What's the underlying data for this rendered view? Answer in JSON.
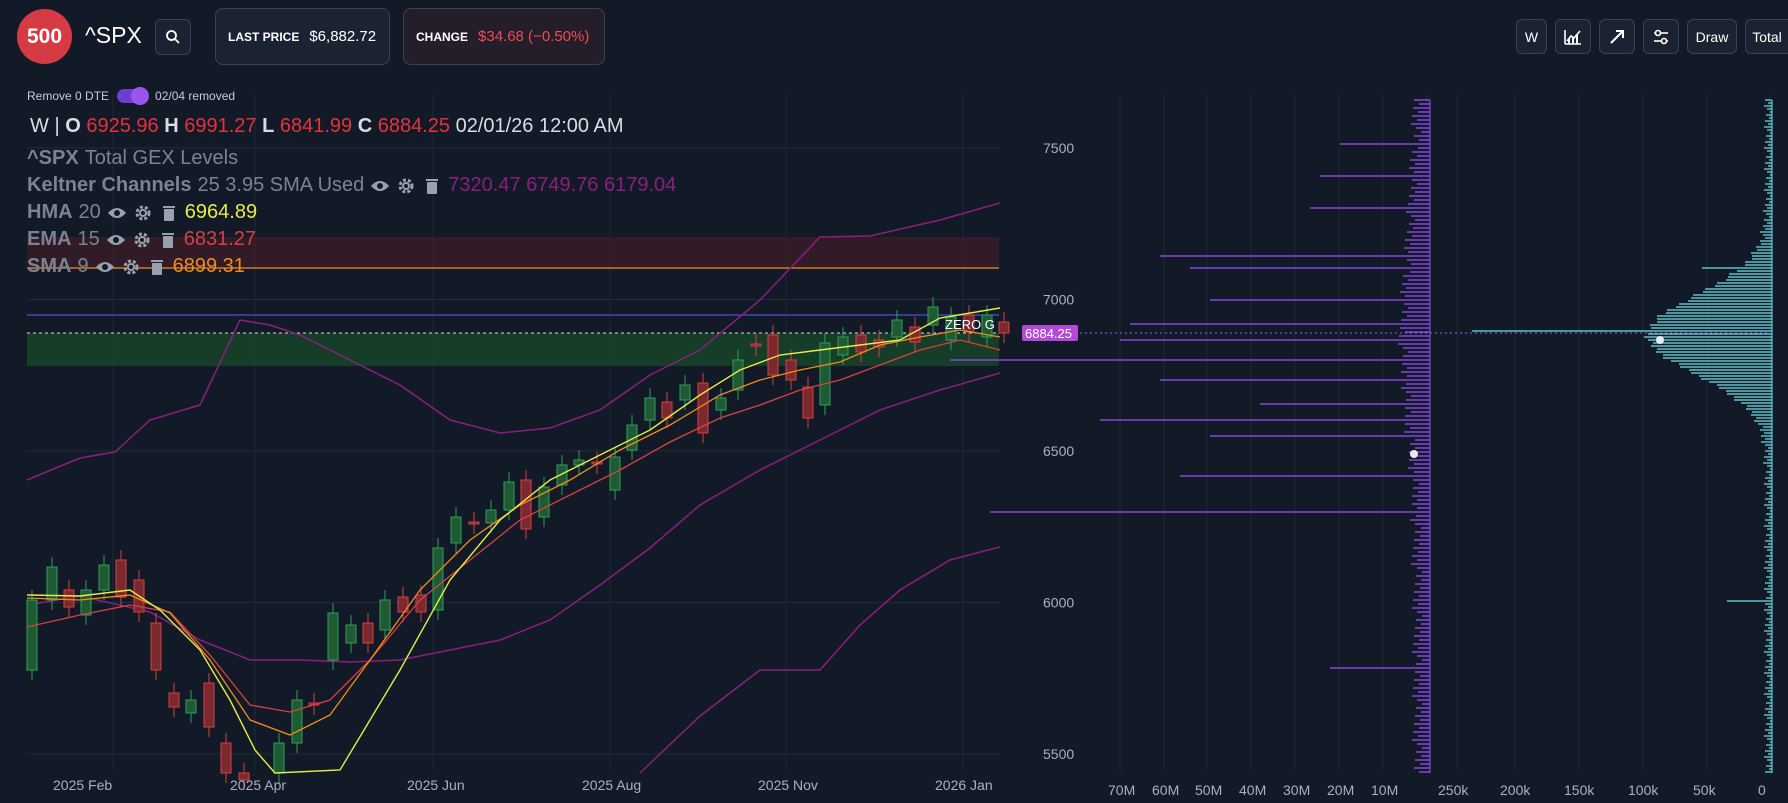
{
  "header": {
    "logo_text": "500",
    "ticker": "^SPX",
    "last_price_label": "LAST PRICE",
    "last_price_value": "$6,882.72",
    "change_label": "CHANGE",
    "change_value": "$34.68 (−0.50%)",
    "buttons": {
      "interval": "W",
      "draw": "Draw",
      "total": "Total"
    },
    "icons": [
      "search-icon",
      "chart-type-icon",
      "trend-line-icon",
      "settings-sliders-icon"
    ]
  },
  "controls": {
    "remove_0dte_label": "Remove 0 DTE",
    "removed_note": "02/04 removed"
  },
  "ohlc": {
    "interval": "W",
    "o_label": "O",
    "o": "6925.96",
    "h_label": "H",
    "h": "6991.27",
    "l_label": "L",
    "l": "6841.99",
    "c_label": "C",
    "c": "6884.25",
    "datetime": "02/01/26 12:00 AM"
  },
  "indicators": {
    "gex": {
      "name": "^SPX",
      "label": "Total GEX Levels"
    },
    "keltner": {
      "name": "Keltner Channels",
      "params": "25 3.95 SMA Used",
      "values": "7320.47 6749.76 6179.04",
      "color": "#8a1f7e"
    },
    "hma": {
      "name": "HMA",
      "params": "20",
      "value": "6964.89",
      "color": "#e6ea4c"
    },
    "ema": {
      "name": "EMA",
      "params": "15",
      "value": "6831.27",
      "color": "#d64045"
    },
    "sma": {
      "name": "SMA",
      "params": "9",
      "value": "6899.31",
      "color": "#f08c1e"
    }
  },
  "chart": {
    "price_axis": [
      "7500",
      "7000",
      "6500",
      "6000",
      "5500"
    ],
    "time_axis": [
      "2025 Feb",
      "2025 Apr",
      "2025 Jun",
      "2025 Aug",
      "2025 Nov",
      "2026 Jan"
    ],
    "current_price_tag": "6884.25",
    "zero_gamma_label": "ZERO G",
    "gex_axis_left": [
      "70M",
      "60M",
      "50M",
      "40M",
      "30M",
      "20M",
      "10M"
    ],
    "gex_axis_right": [
      "250k",
      "200k",
      "150k",
      "100k",
      "50k",
      "0"
    ],
    "colors": {
      "up": "#2ea05a",
      "down": "#d64045",
      "gex_bars": "#9b4dff",
      "oi_bars": "#6fe0e8"
    }
  }
}
